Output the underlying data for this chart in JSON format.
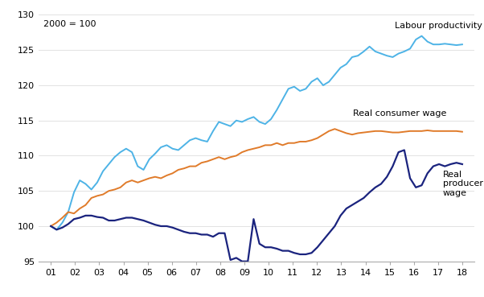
{
  "title_annotation": "2000 = 100",
  "ylim": [
    95,
    130
  ],
  "yticks": [
    95,
    100,
    105,
    110,
    115,
    120,
    125,
    130
  ],
  "xtick_labels": [
    "01",
    "02",
    "03",
    "04",
    "05",
    "06",
    "07",
    "08",
    "09",
    "10",
    "11",
    "12",
    "13",
    "14",
    "15",
    "16",
    "17",
    "18"
  ],
  "labour_productivity_color": "#4db3e6",
  "real_consumer_wage_color": "#e07b2a",
  "real_producer_wage_color": "#1a237e",
  "label_labour": "Labour productivity",
  "label_consumer": "Real consumer wage",
  "label_producer": "Real\nproducer\nwage",
  "labour_productivity": [
    100.0,
    99.5,
    100.5,
    102.0,
    104.8,
    106.5,
    106.0,
    105.2,
    106.2,
    107.8,
    108.8,
    109.8,
    110.5,
    111.0,
    110.5,
    108.5,
    108.0,
    109.5,
    110.3,
    111.2,
    111.5,
    111.0,
    110.8,
    111.5,
    112.2,
    112.5,
    112.2,
    112.0,
    113.5,
    114.8,
    114.5,
    114.2,
    115.0,
    114.8,
    115.2,
    115.5,
    114.8,
    114.5,
    115.2,
    116.5,
    118.0,
    119.5,
    119.8,
    119.2,
    119.5,
    120.5,
    121.0,
    120.0,
    120.5,
    121.5,
    122.5,
    123.0,
    124.0,
    124.2,
    124.8,
    125.5,
    124.8,
    124.5,
    124.2,
    124.0,
    124.5,
    124.8,
    125.2,
    126.5,
    127.0,
    126.2,
    125.8,
    125.8,
    125.9,
    125.8,
    125.7,
    125.8
  ],
  "real_consumer_wage": [
    100.0,
    100.5,
    101.2,
    102.0,
    101.8,
    102.5,
    103.0,
    104.0,
    104.3,
    104.5,
    105.0,
    105.2,
    105.5,
    106.2,
    106.5,
    106.2,
    106.5,
    106.8,
    107.0,
    106.8,
    107.2,
    107.5,
    108.0,
    108.2,
    108.5,
    108.5,
    109.0,
    109.2,
    109.5,
    109.8,
    109.5,
    109.8,
    110.0,
    110.5,
    110.8,
    111.0,
    111.2,
    111.5,
    111.5,
    111.8,
    111.5,
    111.8,
    111.8,
    112.0,
    112.0,
    112.2,
    112.5,
    113.0,
    113.5,
    113.8,
    113.5,
    113.2,
    113.0,
    113.2,
    113.3,
    113.4,
    113.5,
    113.5,
    113.4,
    113.3,
    113.3,
    113.4,
    113.5,
    113.5,
    113.5,
    113.6,
    113.5,
    113.5,
    113.5,
    113.5,
    113.5,
    113.4
  ],
  "real_producer_wage": [
    100.0,
    99.5,
    99.8,
    100.3,
    101.0,
    101.2,
    101.5,
    101.5,
    101.3,
    101.2,
    100.8,
    100.8,
    101.0,
    101.2,
    101.2,
    101.0,
    100.8,
    100.5,
    100.2,
    100.0,
    100.0,
    99.8,
    99.5,
    99.2,
    99.0,
    99.0,
    98.8,
    98.8,
    98.5,
    99.0,
    99.0,
    95.2,
    95.5,
    95.0,
    95.0,
    101.0,
    97.5,
    97.0,
    97.0,
    96.8,
    96.5,
    96.5,
    96.2,
    96.0,
    96.0,
    96.2,
    97.0,
    98.0,
    99.0,
    100.0,
    101.5,
    102.5,
    103.0,
    103.5,
    104.0,
    104.8,
    105.5,
    106.0,
    107.0,
    108.5,
    110.5,
    110.8,
    106.8,
    105.5,
    105.8,
    107.5,
    108.5,
    108.8,
    108.5,
    108.8,
    109.0,
    108.8
  ],
  "figsize": [
    6.02,
    3.69
  ],
  "dpi": 100
}
